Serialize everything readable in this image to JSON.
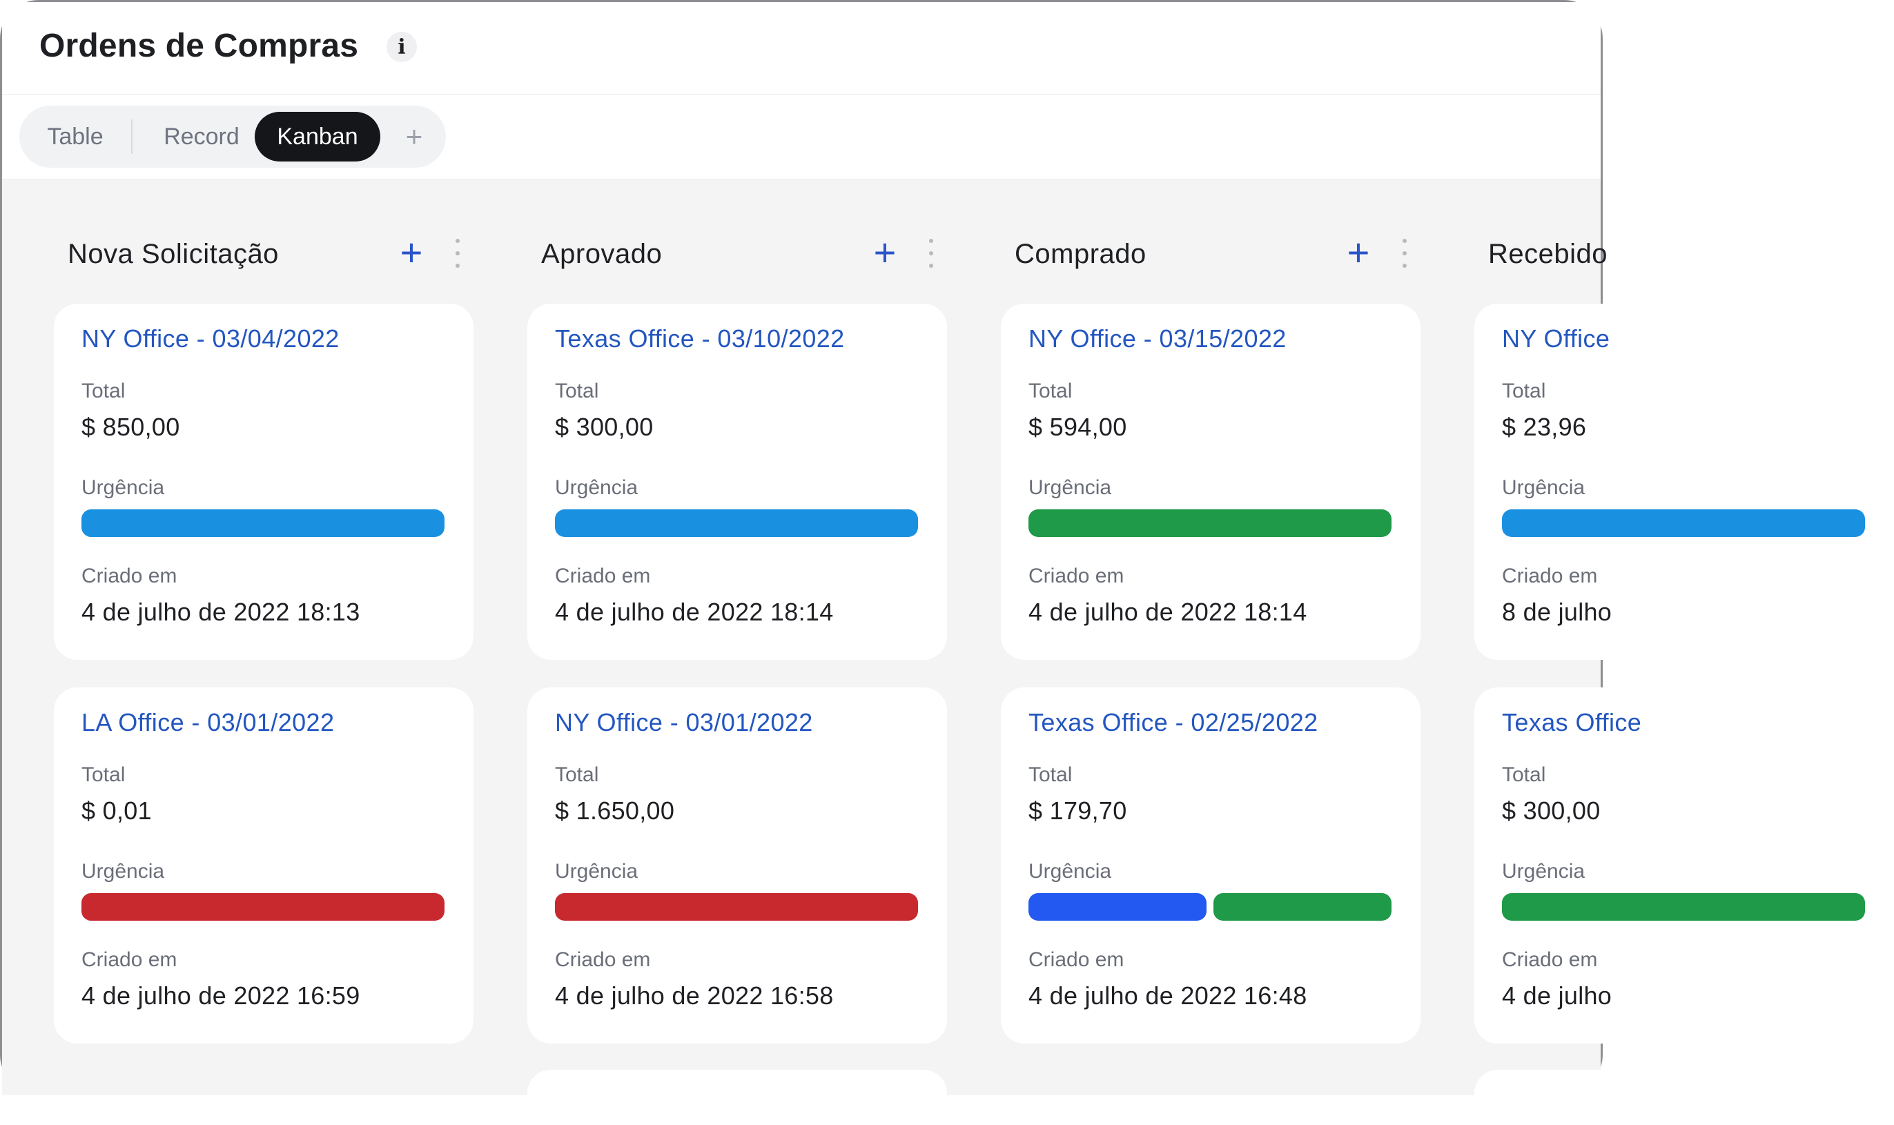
{
  "header": {
    "title": "Ordens de Compras",
    "info_icon": "info-icon"
  },
  "views": {
    "tabs": [
      {
        "label": "Table",
        "active": false
      },
      {
        "label": "Record",
        "active": false
      },
      {
        "label": "Kanban",
        "active": true
      }
    ],
    "add_label": "+"
  },
  "labels": {
    "total": "Total",
    "urgency": "Urgência",
    "created": "Criado em"
  },
  "colors": {
    "blue": "#1a90e0",
    "green": "#1f9a48",
    "red": "#c8292f",
    "royal": "#2359f0",
    "link": "#2356c0",
    "accent": "#2a54c9"
  },
  "columns": [
    {
      "title": "Nova Solicitação",
      "cards": [
        {
          "title": "NY Office - 03/04/2022",
          "total": "$ 850,00",
          "urgency": [
            "#1a90e0"
          ],
          "created": "4 de julho de 2022 18:13"
        },
        {
          "title": "LA Office - 03/01/2022",
          "total": "$ 0,01",
          "urgency": [
            "#c8292f"
          ],
          "created": "4 de julho de 2022 16:59"
        }
      ]
    },
    {
      "title": "Aprovado",
      "cards": [
        {
          "title": "Texas Office - 03/10/2022",
          "total": "$ 300,00",
          "urgency": [
            "#1a90e0"
          ],
          "created": "4 de julho de 2022 18:14"
        },
        {
          "title": "NY Office - 03/01/2022",
          "total": "$ 1.650,00",
          "urgency": [
            "#c8292f"
          ],
          "created": "4 de julho de 2022 16:58"
        }
      ]
    },
    {
      "title": "Comprado",
      "cards": [
        {
          "title": "NY Office - 03/15/2022",
          "total": "$ 594,00",
          "urgency": [
            "#1f9a48"
          ],
          "created": "4 de julho de 2022 18:14"
        },
        {
          "title": "Texas Office - 02/25/2022",
          "total": "$ 179,70",
          "urgency": [
            "#2359f0",
            "#1f9a48"
          ],
          "created": "4 de julho de 2022 16:48"
        }
      ]
    },
    {
      "title": "Recebido",
      "cards": [
        {
          "title": "NY Office",
          "total": "$ 23,96",
          "urgency": [
            "#1a90e0"
          ],
          "created": "8 de julho"
        },
        {
          "title": "Texas Office",
          "total": "$ 300,00",
          "urgency": [
            "#1f9a48"
          ],
          "created": "4 de julho"
        }
      ]
    }
  ]
}
